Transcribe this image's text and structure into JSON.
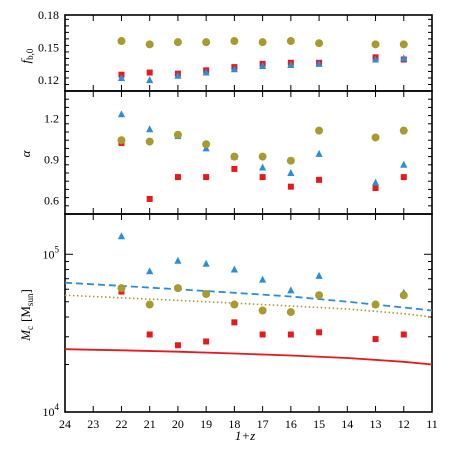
{
  "chart_data": [
    {
      "type": "scatter",
      "panel": "top",
      "ylabel": "f_b,0",
      "ylabel_main": "f",
      "ylabel_sub": "b,0",
      "xlim": [
        24,
        11
      ],
      "ylim": [
        0.11,
        0.18
      ],
      "yticks": [
        0.12,
        0.15,
        0.18
      ],
      "ytick_labels": [
        "0.12",
        "0.15",
        "0.18"
      ],
      "series": [
        {
          "marker": "square",
          "color": "#e8191c",
          "x": [
            22,
            21,
            20,
            19,
            18,
            17,
            16,
            15,
            13,
            12
          ],
          "y": [
            0.125,
            0.127,
            0.126,
            0.129,
            0.132,
            0.135,
            0.136,
            0.136,
            0.141,
            0.139
          ]
        },
        {
          "marker": "triangle",
          "color": "#2a8fdb",
          "x": [
            22,
            21,
            20,
            19,
            18,
            17,
            16,
            15,
            13,
            12
          ],
          "y": [
            0.122,
            0.12,
            0.124,
            0.127,
            0.13,
            0.133,
            0.134,
            0.135,
            0.139,
            0.14
          ]
        },
        {
          "marker": "circle",
          "color": "#a89a2c",
          "x": [
            22,
            21,
            20,
            19,
            18,
            17,
            16,
            15,
            13,
            12
          ],
          "y": [
            0.156,
            0.153,
            0.155,
            0.155,
            0.156,
            0.155,
            0.156,
            0.154,
            0.153,
            0.153
          ]
        }
      ]
    },
    {
      "type": "scatter",
      "panel": "middle",
      "ylabel": "α",
      "xlim": [
        24,
        11
      ],
      "ylim": [
        0.5,
        1.4
      ],
      "yticks": [
        0.6,
        0.9,
        1.2
      ],
      "ytick_labels": [
        "0.6",
        "0.9",
        "1.2"
      ],
      "series": [
        {
          "marker": "square",
          "color": "#e8191c",
          "x": [
            22,
            21,
            20,
            19,
            18,
            17,
            16,
            15,
            13,
            12
          ],
          "y": [
            1.02,
            0.61,
            0.77,
            0.77,
            0.83,
            0.77,
            0.7,
            0.75,
            0.69,
            0.77
          ]
        },
        {
          "marker": "triangle",
          "color": "#2a8fdb",
          "x": [
            22,
            21,
            20,
            19,
            18,
            17,
            16,
            15,
            13,
            12
          ],
          "y": [
            1.23,
            1.12,
            1.07,
            0.98,
            0.92,
            0.84,
            0.8,
            0.94,
            0.73,
            0.86
          ]
        },
        {
          "marker": "circle",
          "color": "#a89a2c",
          "x": [
            22,
            21,
            20,
            19,
            18,
            17,
            16,
            15,
            13,
            12
          ],
          "y": [
            1.04,
            1.03,
            1.08,
            1.01,
            0.92,
            0.92,
            0.89,
            1.11,
            1.06,
            1.11
          ]
        }
      ]
    },
    {
      "type": "scatter",
      "panel": "bottom",
      "ylabel": "M_c [M_sun]",
      "ylabel_main": "M",
      "ylabel_sub": "c",
      "ylabel_bracket_open": "[M",
      "ylabel_bracket_sub": "sun",
      "ylabel_bracket_close": "]",
      "xlabel": "1+z",
      "log_y": true,
      "xlim": [
        24,
        11
      ],
      "xticks": [
        24,
        23,
        22,
        21,
        20,
        19,
        18,
        17,
        16,
        15,
        14,
        13,
        12,
        11
      ],
      "xtick_labels": [
        "24",
        "23",
        "22",
        "21",
        "20",
        "19",
        "18",
        "17",
        "16",
        "15",
        "14",
        "13",
        "12",
        "11"
      ],
      "ylim": [
        10000,
        180000
      ],
      "yticks": [
        10000,
        100000
      ],
      "ytick_labels": [
        {
          "base": "10",
          "exp": "4"
        },
        {
          "base": "10",
          "exp": "5"
        }
      ],
      "series": [
        {
          "marker": "square",
          "color": "#e8191c",
          "x": [
            22,
            21,
            20,
            19,
            18,
            17,
            16,
            15,
            13,
            12
          ],
          "y": [
            58000,
            31000,
            26500,
            28000,
            37000,
            31000,
            31000,
            32000,
            29000,
            31000
          ]
        },
        {
          "marker": "triangle",
          "color": "#2a8fdb",
          "x": [
            22,
            21,
            20,
            19,
            18,
            17,
            16,
            15,
            13,
            12
          ],
          "y": [
            130000,
            78000,
            91000,
            87000,
            80000,
            69000,
            59000,
            73000,
            48000,
            57000
          ]
        },
        {
          "marker": "circle",
          "color": "#a89a2c",
          "x": [
            22,
            21,
            20,
            19,
            18,
            17,
            16,
            15,
            13,
            12
          ],
          "y": [
            61000,
            48000,
            61000,
            56000,
            48000,
            44000,
            43000,
            55000,
            48000,
            55000
          ]
        }
      ],
      "curves": [
        {
          "style": "dashed",
          "color": "#2a8fdb",
          "x": [
            24,
            22,
            20,
            18,
            16,
            14,
            12,
            11
          ],
          "y": [
            66000,
            63000,
            60000,
            57000,
            54000,
            50000,
            46000,
            44000
          ]
        },
        {
          "style": "dotted",
          "color": "#a89a2c",
          "x": [
            24,
            22,
            20,
            18,
            16,
            14,
            12,
            11
          ],
          "y": [
            55000,
            53000,
            51000,
            49000,
            47000,
            45000,
            42000,
            40000
          ]
        },
        {
          "style": "solid",
          "color": "#e8191c",
          "x": [
            24,
            22,
            20,
            18,
            16,
            14,
            12,
            11
          ],
          "y": [
            25000,
            24600,
            24100,
            23500,
            22800,
            22000,
            20800,
            20000
          ]
        }
      ]
    }
  ]
}
